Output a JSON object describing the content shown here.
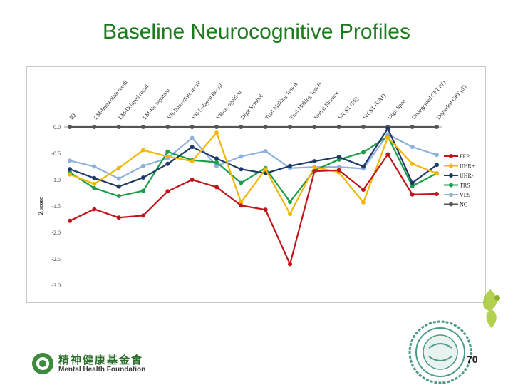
{
  "slide": {
    "title": "Baseline Neurocognitive Profiles",
    "page_number": "70",
    "org_name_zh": "精神健康基金會",
    "org_name_en": "Mental Health Foundation"
  },
  "colors": {
    "title": "#1e7a1e",
    "FEP": "#c0161b",
    "UHR+": "#f2b705",
    "UHR-": "#1f3a68",
    "TRS": "#1c9e4a",
    "VES": "#8fb1dd",
    "NC": "#555555"
  },
  "chart_data": {
    "type": "line",
    "ylabel": "Z score",
    "xlabel": "",
    "ylim": [
      -3.0,
      0.0
    ],
    "yticks": [
      "0.0",
      "-0.5",
      "-1.0",
      "-1.5",
      "-2.0",
      "-2.5",
      "-3.0"
    ],
    "grid": false,
    "legend_position": "right",
    "categories": [
      "IQ",
      "LM-Immediate recall",
      "LM-Delayed recall",
      "LM-Recognition",
      "VR-Immediate recall",
      "VR-Delayed Recall",
      "VR-recognition",
      "Digit Symbol",
      "Trail Making Test-A",
      "Trail Making Test-B",
      "Verbal Fluency",
      "WCST (PE)",
      "WCST (CAT)",
      "Digit Span",
      "Undegraded CPT (d')",
      "Degraded CPT (d')"
    ],
    "series": [
      {
        "name": "FEP",
        "values": [
          -1.78,
          -1.56,
          -1.72,
          -1.68,
          -1.22,
          -1.0,
          -1.14,
          -1.49,
          -1.57,
          -2.6,
          -0.84,
          -0.82,
          -1.19,
          -0.52,
          -1.28,
          -1.27
        ]
      },
      {
        "name": "UHR+",
        "values": [
          -0.9,
          -1.08,
          -0.78,
          -0.44,
          -0.56,
          -0.65,
          -0.11,
          -1.43,
          -0.8,
          -1.65,
          -0.76,
          -0.86,
          -1.43,
          -0.2,
          -0.7,
          -0.88
        ]
      },
      {
        "name": "UHR-",
        "values": [
          -0.8,
          -0.97,
          -1.13,
          -0.96,
          -0.7,
          -0.38,
          -0.6,
          -0.8,
          -0.88,
          -0.74,
          -0.65,
          -0.57,
          -0.75,
          -0.03,
          -1.06,
          -0.72
        ]
      },
      {
        "name": "TRS",
        "values": [
          -0.86,
          -1.16,
          -1.31,
          -1.21,
          -0.47,
          -0.63,
          -0.67,
          -1.06,
          -0.78,
          -1.42,
          -0.82,
          -0.62,
          -0.48,
          -0.18,
          -1.12,
          -0.88
        ]
      },
      {
        "name": "VES",
        "values": [
          -0.64,
          -0.75,
          -0.98,
          -0.74,
          -0.59,
          -0.21,
          -0.74,
          -0.56,
          -0.46,
          -0.78,
          -0.76,
          -0.76,
          -0.79,
          -0.14,
          -0.38,
          -0.53
        ]
      },
      {
        "name": "NC",
        "values": [
          0.0,
          0.0,
          0.0,
          0.0,
          0.0,
          0.0,
          0.0,
          0.0,
          0.0,
          0.0,
          0.0,
          0.0,
          0.0,
          0.0,
          0.0,
          0.0
        ]
      }
    ]
  }
}
